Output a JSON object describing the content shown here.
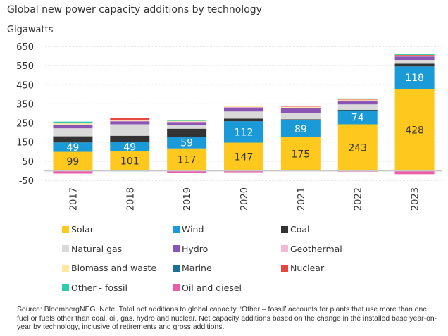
{
  "header": {
    "title": "Global new power capacity additions by technology",
    "unit_label": "Gigawatts"
  },
  "source_note": "Source: BloombergNEG. Note: Total net additions to global capacity. ‘Other – fossil’ accounts for plants that use more than one fuel or fuels other than coal, oil, gas, hydro and nuclear. Net capacity additions based on the change in the installed base year-on-year by technology, inclusive of retirements and gross additions.",
  "chart_data": {
    "type": "bar",
    "stacked": true,
    "title": "Global new power capacity additions by technology",
    "xlabel": "",
    "ylabel": "Gigawatts",
    "ylim": [
      -50,
      650
    ],
    "yticks": [
      -50,
      50,
      150,
      250,
      350,
      450,
      550,
      650
    ],
    "grid": true,
    "legend_position": "bottom",
    "categories": [
      "2017",
      "2018",
      "2019",
      "2020",
      "2021",
      "2022",
      "2023"
    ],
    "series": [
      {
        "name": "Solar",
        "color": "#FFC81E",
        "label_color": "#333333",
        "show_labels": true,
        "values": [
          99,
          101,
          117,
          147,
          175,
          243,
          428
        ]
      },
      {
        "name": "Wind",
        "color": "#1A9AD6",
        "label_color": "#FFFFFF",
        "show_labels": true,
        "values": [
          49,
          49,
          59,
          112,
          89,
          74,
          118
        ]
      },
      {
        "name": "Coal",
        "color": "#333333",
        "show_labels": false,
        "values": [
          32,
          33,
          44,
          14,
          5,
          2,
          14
        ]
      },
      {
        "name": "Natural gas",
        "color": "#D9D9D9",
        "show_labels": false,
        "values": [
          42,
          60,
          20,
          37,
          31,
          28,
          20
        ]
      },
      {
        "name": "Hydro",
        "color": "#8B55B5",
        "show_labels": false,
        "values": [
          19,
          17,
          16,
          22,
          28,
          20,
          19
        ]
      },
      {
        "name": "Geothermal",
        "color": "#F4B8D8",
        "show_labels": false,
        "values": [
          1,
          1,
          1,
          1,
          1,
          1,
          1
        ]
      },
      {
        "name": "Biomass and waste",
        "color": "#FFE9A0",
        "show_labels": false,
        "values": [
          6,
          6,
          4,
          7,
          6,
          5,
          5
        ]
      },
      {
        "name": "Marine",
        "color": "#1A6E9A",
        "show_labels": false,
        "values": [
          0,
          -3,
          0,
          0,
          0,
          0,
          0
        ]
      },
      {
        "name": "Nuclear",
        "color": "#E8453C",
        "show_labels": false,
        "values": [
          0,
          10,
          0,
          0,
          0,
          2,
          1
        ]
      },
      {
        "name": "Other - fossil",
        "color": "#2ECBB0",
        "show_labels": false,
        "values": [
          9,
          0,
          4,
          0,
          0,
          3,
          4
        ]
      },
      {
        "name": "Oil and diesel",
        "color": "#EC5CA8",
        "show_labels": false,
        "values": [
          -15,
          0,
          -10,
          -8,
          3,
          -5,
          -18
        ]
      }
    ]
  },
  "legend": {
    "items": [
      {
        "name": "Solar",
        "color": "#FFC81E"
      },
      {
        "name": "Wind",
        "color": "#1A9AD6"
      },
      {
        "name": "Coal",
        "color": "#333333"
      },
      {
        "name": "Natural gas",
        "color": "#D9D9D9"
      },
      {
        "name": "Hydro",
        "color": "#8B55B5"
      },
      {
        "name": "Geothermal",
        "color": "#F4B8D8"
      },
      {
        "name": "Biomass and waste",
        "color": "#FFE9A0"
      },
      {
        "name": "Marine",
        "color": "#1A6E9A"
      },
      {
        "name": "Nuclear",
        "color": "#E8453C"
      },
      {
        "name": "Other - fossil",
        "color": "#2ECBB0"
      },
      {
        "name": "Oil and diesel",
        "color": "#EC5CA8"
      }
    ]
  }
}
